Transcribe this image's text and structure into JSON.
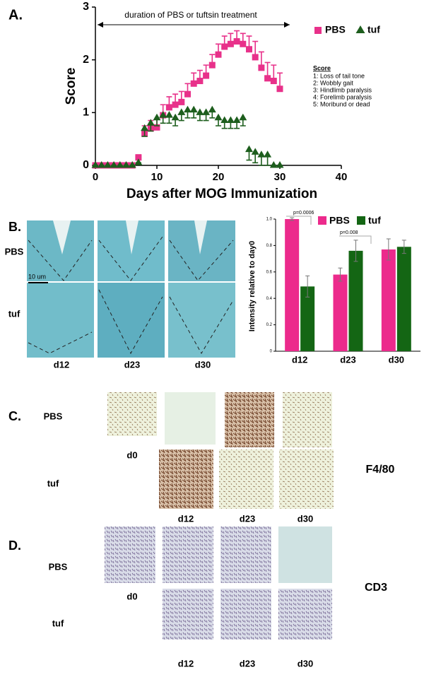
{
  "chart_data": [
    {
      "type": "scatter",
      "panel_label": "A.",
      "xlabel": "Days after MOG Immunization",
      "ylabel": "Score",
      "annotation": "duration of PBS or tuftsin treatment",
      "x": [
        0,
        1,
        2,
        3,
        4,
        5,
        6,
        7,
        8,
        9,
        10,
        11,
        12,
        13,
        14,
        15,
        16,
        17,
        18,
        19,
        20,
        21,
        22,
        23,
        24,
        25,
        26,
        27,
        28,
        29,
        30
      ],
      "series": [
        {
          "name": "PBS",
          "color": "#e8318a",
          "marker": "square",
          "values": [
            0,
            0,
            0,
            0,
            0,
            0,
            0,
            0.15,
            0.6,
            0.7,
            0.72,
            0.95,
            1.1,
            1.15,
            1.2,
            1.35,
            1.55,
            1.6,
            1.7,
            1.9,
            2.1,
            2.25,
            2.3,
            2.35,
            2.3,
            2.2,
            2.05,
            1.85,
            1.65,
            1.6,
            1.45
          ],
          "errors": [
            0,
            0,
            0,
            0,
            0,
            0,
            0,
            0.05,
            0.15,
            0.15,
            0.15,
            0.2,
            0.2,
            0.2,
            0.2,
            0.2,
            0.2,
            0.2,
            0.2,
            0.2,
            0.2,
            0.2,
            0.2,
            0.2,
            0.2,
            0.25,
            0.3,
            0.3,
            0.3,
            0.3,
            0.3
          ]
        },
        {
          "name": "tuf",
          "color": "#1d5e1d",
          "marker": "triangle",
          "values": [
            0,
            0,
            0,
            0,
            0,
            0,
            0,
            0.05,
            0.7,
            0.8,
            0.9,
            0.95,
            0.95,
            0.9,
            1.0,
            1.05,
            1.05,
            1.0,
            1.0,
            1.05,
            0.9,
            0.85,
            0.85,
            0.85,
            0.9,
            0.3,
            0.25,
            0.2,
            0.2,
            0,
            0
          ],
          "errors": [
            0,
            0,
            0,
            0,
            0,
            0,
            0,
            0,
            0.15,
            0.15,
            0.15,
            0.15,
            0.15,
            0.15,
            0.15,
            0.15,
            0.15,
            0.15,
            0.15,
            0.15,
            0.15,
            0.15,
            0.15,
            0.15,
            0.15,
            0.2,
            0.2,
            0.2,
            0.2,
            0,
            0
          ]
        }
      ],
      "xlim": [
        0,
        40
      ],
      "xticks": [
        0,
        10,
        20,
        30,
        40
      ],
      "ylim": [
        0,
        3
      ],
      "yticks": [
        0,
        1,
        2,
        3
      ],
      "score_key": {
        "title": "Score",
        "items": [
          "1: Loss of tail tone",
          "2: Wobbly gait",
          "3: Hindlimb paralysis",
          "4: Forelimb paralysis",
          "5: Moribund or dead"
        ]
      }
    },
    {
      "type": "bar",
      "ylabel": "Intensity relative to day0",
      "categories": [
        "d12",
        "d23",
        "d30"
      ],
      "series": [
        {
          "name": "PBS",
          "color": "#ec2a8c",
          "values": [
            1.0,
            0.58,
            0.77
          ],
          "errors": [
            0.01,
            0.05,
            0.08
          ]
        },
        {
          "name": "tuf",
          "color": "#146614",
          "values": [
            0.49,
            0.76,
            0.79
          ],
          "errors": [
            0.08,
            0.08,
            0.05
          ]
        }
      ],
      "annotations": [
        "p=0.0006",
        "p=0.008"
      ],
      "ylim": [
        0,
        1
      ],
      "yticks": [
        0,
        0.2,
        0.4,
        0.6,
        0.8,
        {
          "value": 1,
          "label": "1.0"
        }
      ]
    }
  ],
  "panel_b": {
    "label": "B.",
    "rows": [
      "PBS",
      "tuf"
    ],
    "scale": "10 um",
    "columns": [
      "d12",
      "d23",
      "d30"
    ]
  },
  "panel_c": {
    "label": "C.",
    "rows": [
      "PBS",
      "tuf"
    ],
    "baseline": "d0",
    "stain": "F4/80",
    "columns": [
      "d12",
      "d23",
      "d30"
    ]
  },
  "panel_d": {
    "label": "D.",
    "rows": [
      "PBS",
      "tuf"
    ],
    "baseline": "d0",
    "stain": "CD3",
    "columns": [
      "d12",
      "d23",
      "d30"
    ]
  }
}
